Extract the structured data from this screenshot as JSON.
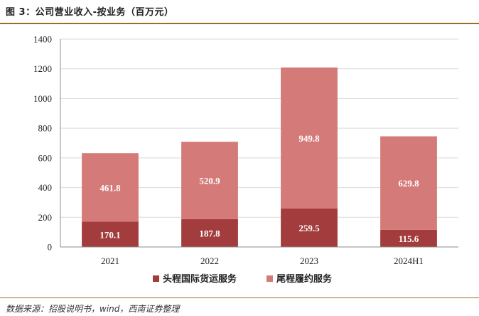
{
  "header": {
    "title": "图 3：公司营业收入-按业务（百万元）"
  },
  "footer": {
    "source": "数据来源：招股说明书，wind，西南证券整理"
  },
  "chart_data": {
    "type": "bar",
    "stacked": true,
    "categories": [
      "2021",
      "2022",
      "2023",
      "2024H1"
    ],
    "series": [
      {
        "name": "头程国际货运服务",
        "values": [
          170.1,
          187.8,
          259.5,
          115.6
        ],
        "color": "#a33d3d"
      },
      {
        "name": "尾程履约服务",
        "values": [
          461.8,
          520.9,
          949.8,
          629.8
        ],
        "color": "#d47a78"
      }
    ],
    "labels": {
      "series0": [
        "170.1",
        "187.8",
        "259.5",
        "115.6"
      ],
      "series1": [
        "461.8",
        "520.9",
        "949.8",
        "629.8"
      ]
    },
    "yticks": [
      "0",
      "200",
      "400",
      "600",
      "800",
      "1000",
      "1200",
      "1400"
    ],
    "ylim": [
      0,
      1400
    ],
    "grid": true,
    "legend_position": "bottom"
  }
}
